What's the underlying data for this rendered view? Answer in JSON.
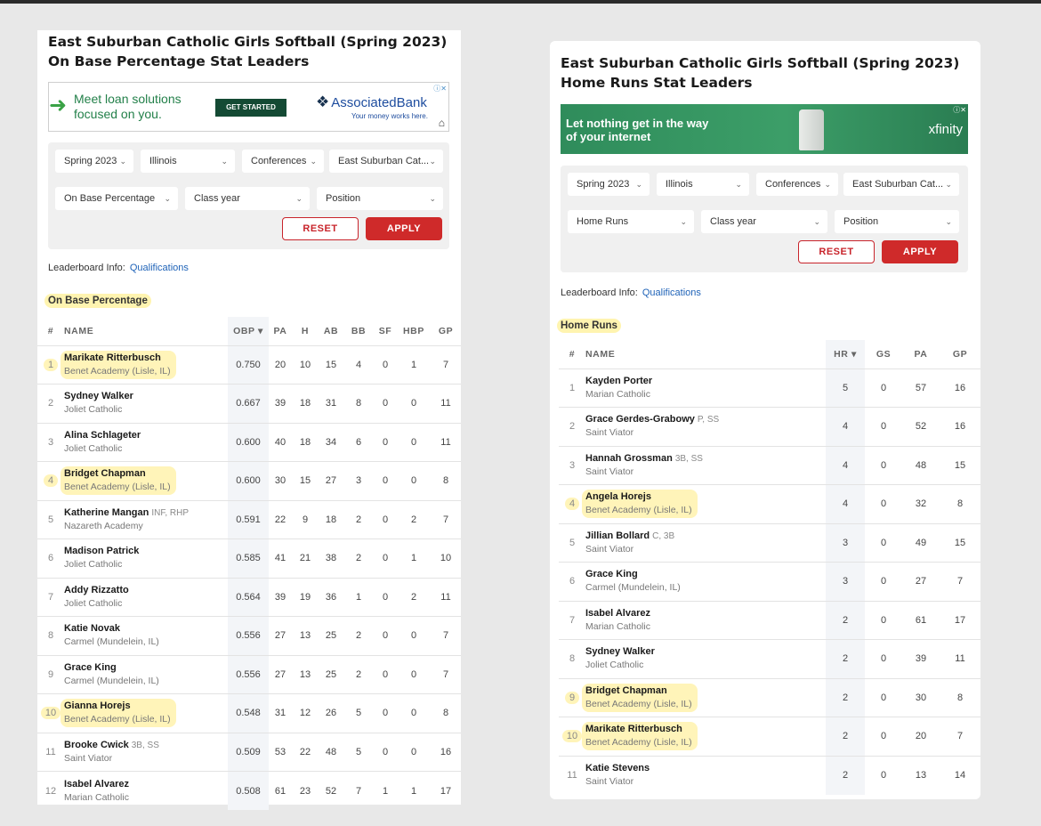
{
  "left": {
    "title": "East Suburban Catholic Girls Softball (Spring 2023) On Base Percentage Stat Leaders",
    "ad": {
      "text": "Meet loan solutions focused on you.",
      "cta": "GET STARTED",
      "brand": "AssociatedBank",
      "tagline": "Your money works here.",
      "close": "ⓘ✕"
    },
    "filters": {
      "season": "Spring 2023",
      "state": "Illinois",
      "conferences": "Conferences",
      "conference": "East Suburban Cat...",
      "stat": "On Base Percentage",
      "class_year": "Class year",
      "position": "Position",
      "reset": "RESET",
      "apply": "APPLY"
    },
    "leaderboard_info": "Leaderboard Info:",
    "qualifications": "Qualifications",
    "section": "On Base Percentage",
    "columns": [
      "#",
      "NAME",
      "OBP ▾",
      "PA",
      "H",
      "AB",
      "BB",
      "SF",
      "HBP",
      "GP"
    ],
    "rows": [
      {
        "rank": "1",
        "name": "Marikate Ritterbusch",
        "pos": "",
        "school": "Benet Academy (Lisle, IL)",
        "hl": true,
        "stats": [
          "0.750",
          "20",
          "10",
          "15",
          "4",
          "0",
          "1",
          "7"
        ]
      },
      {
        "rank": "2",
        "name": "Sydney Walker",
        "pos": "",
        "school": "Joliet Catholic",
        "hl": false,
        "stats": [
          "0.667",
          "39",
          "18",
          "31",
          "8",
          "0",
          "0",
          "11"
        ]
      },
      {
        "rank": "3",
        "name": "Alina Schlageter",
        "pos": "",
        "school": "Joliet Catholic",
        "hl": false,
        "stats": [
          "0.600",
          "40",
          "18",
          "34",
          "6",
          "0",
          "0",
          "11"
        ]
      },
      {
        "rank": "4",
        "name": "Bridget Chapman",
        "pos": "",
        "school": "Benet Academy (Lisle, IL)",
        "hl": true,
        "stats": [
          "0.600",
          "30",
          "15",
          "27",
          "3",
          "0",
          "0",
          "8"
        ]
      },
      {
        "rank": "5",
        "name": "Katherine Mangan",
        "pos": "INF, RHP",
        "school": "Nazareth Academy",
        "hl": false,
        "stats": [
          "0.591",
          "22",
          "9",
          "18",
          "2",
          "0",
          "2",
          "7"
        ]
      },
      {
        "rank": "6",
        "name": "Madison Patrick",
        "pos": "",
        "school": "Joliet Catholic",
        "hl": false,
        "stats": [
          "0.585",
          "41",
          "21",
          "38",
          "2",
          "0",
          "1",
          "10"
        ]
      },
      {
        "rank": "7",
        "name": "Addy Rizzatto",
        "pos": "",
        "school": "Joliet Catholic",
        "hl": false,
        "stats": [
          "0.564",
          "39",
          "19",
          "36",
          "1",
          "0",
          "2",
          "11"
        ]
      },
      {
        "rank": "8",
        "name": "Katie Novak",
        "pos": "",
        "school": "Carmel (Mundelein, IL)",
        "hl": false,
        "stats": [
          "0.556",
          "27",
          "13",
          "25",
          "2",
          "0",
          "0",
          "7"
        ]
      },
      {
        "rank": "9",
        "name": "Grace King",
        "pos": "",
        "school": "Carmel (Mundelein, IL)",
        "hl": false,
        "stats": [
          "0.556",
          "27",
          "13",
          "25",
          "2",
          "0",
          "0",
          "7"
        ]
      },
      {
        "rank": "10",
        "name": "Gianna Horejs",
        "pos": "",
        "school": "Benet Academy (Lisle, IL)",
        "hl": true,
        "stats": [
          "0.548",
          "31",
          "12",
          "26",
          "5",
          "0",
          "0",
          "8"
        ]
      },
      {
        "rank": "11",
        "name": "Brooke Cwick",
        "pos": "3B, SS",
        "school": "Saint Viator",
        "hl": false,
        "stats": [
          "0.509",
          "53",
          "22",
          "48",
          "5",
          "0",
          "0",
          "16"
        ]
      },
      {
        "rank": "12",
        "name": "Isabel Alvarez",
        "pos": "",
        "school": "Marian Catholic",
        "hl": false,
        "stats": [
          "0.508",
          "61",
          "23",
          "52",
          "7",
          "1",
          "1",
          "17"
        ]
      }
    ]
  },
  "right": {
    "title": "East Suburban Catholic Girls Softball (Spring 2023) Home Runs Stat Leaders",
    "ad": {
      "text": "Let nothing get in the way of your internet",
      "brand": "xfinity",
      "close": "ⓘ✕"
    },
    "filters": {
      "season": "Spring 2023",
      "state": "Illinois",
      "conferences": "Conferences",
      "conference": "East Suburban Cat...",
      "stat": "Home Runs",
      "class_year": "Class year",
      "position": "Position",
      "reset": "RESET",
      "apply": "APPLY"
    },
    "leaderboard_info": "Leaderboard Info:",
    "qualifications": "Qualifications",
    "section": "Home Runs",
    "columns": [
      "#",
      "NAME",
      "HR ▾",
      "GS",
      "PA",
      "GP"
    ],
    "rows": [
      {
        "rank": "1",
        "name": "Kayden Porter",
        "pos": "",
        "school": "Marian Catholic",
        "hl": false,
        "stats": [
          "5",
          "0",
          "57",
          "16"
        ]
      },
      {
        "rank": "2",
        "name": "Grace Gerdes-Grabowy",
        "pos": "P, SS",
        "school": "Saint Viator",
        "hl": false,
        "stats": [
          "4",
          "0",
          "52",
          "16"
        ]
      },
      {
        "rank": "3",
        "name": "Hannah Grossman",
        "pos": "3B, SS",
        "school": "Saint Viator",
        "hl": false,
        "stats": [
          "4",
          "0",
          "48",
          "15"
        ]
      },
      {
        "rank": "4",
        "name": "Angela Horejs",
        "pos": "",
        "school": "Benet Academy (Lisle, IL)",
        "hl": true,
        "stats": [
          "4",
          "0",
          "32",
          "8"
        ]
      },
      {
        "rank": "5",
        "name": "Jillian Bollard",
        "pos": "C, 3B",
        "school": "Saint Viator",
        "hl": false,
        "stats": [
          "3",
          "0",
          "49",
          "15"
        ]
      },
      {
        "rank": "6",
        "name": "Grace King",
        "pos": "",
        "school": "Carmel (Mundelein, IL)",
        "hl": false,
        "stats": [
          "3",
          "0",
          "27",
          "7"
        ]
      },
      {
        "rank": "7",
        "name": "Isabel Alvarez",
        "pos": "",
        "school": "Marian Catholic",
        "hl": false,
        "stats": [
          "2",
          "0",
          "61",
          "17"
        ]
      },
      {
        "rank": "8",
        "name": "Sydney Walker",
        "pos": "",
        "school": "Joliet Catholic",
        "hl": false,
        "stats": [
          "2",
          "0",
          "39",
          "11"
        ]
      },
      {
        "rank": "9",
        "name": "Bridget Chapman",
        "pos": "",
        "school": "Benet Academy (Lisle, IL)",
        "hl": true,
        "stats": [
          "2",
          "0",
          "30",
          "8"
        ]
      },
      {
        "rank": "10",
        "name": "Marikate Ritterbusch",
        "pos": "",
        "school": "Benet Academy (Lisle, IL)",
        "hl": true,
        "stats": [
          "2",
          "0",
          "20",
          "7"
        ]
      },
      {
        "rank": "11",
        "name": "Katie Stevens",
        "pos": "",
        "school": "Saint Viator",
        "hl": false,
        "stats": [
          "2",
          "0",
          "13",
          "14"
        ]
      }
    ]
  },
  "colors": {
    "accent_red": "#cf2a2a",
    "link_blue": "#1f63b8",
    "highlight_yellow": "#ffe246",
    "ad_green": "#2f8c5b"
  }
}
